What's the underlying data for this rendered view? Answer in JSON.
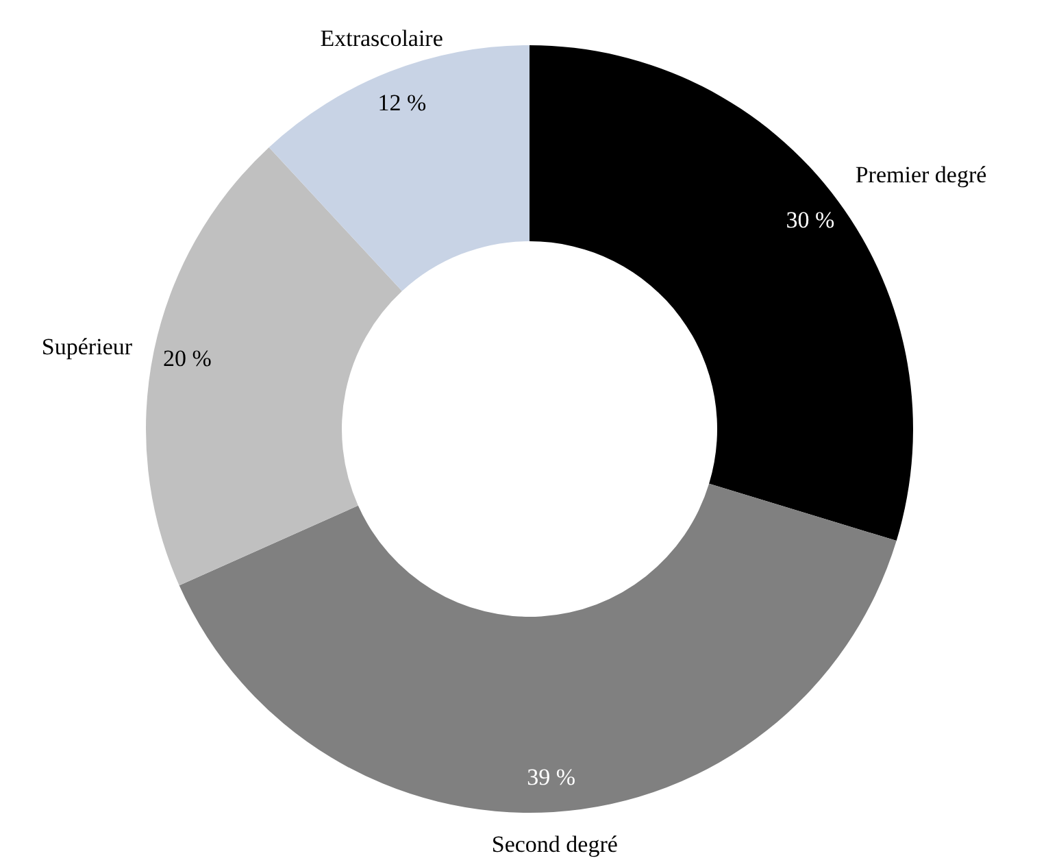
{
  "chart_data": {
    "type": "donut",
    "categories": [
      "Premier degré",
      "Second degré",
      "Supérieur",
      "Extrascolaire"
    ],
    "values": [
      30,
      39,
      20,
      12
    ],
    "colors": [
      "#000000",
      "#808080",
      "#c0c0c0",
      "#c8d3e5"
    ],
    "value_labels": [
      "30 %",
      "39 %",
      "20 %",
      "12 %"
    ]
  }
}
